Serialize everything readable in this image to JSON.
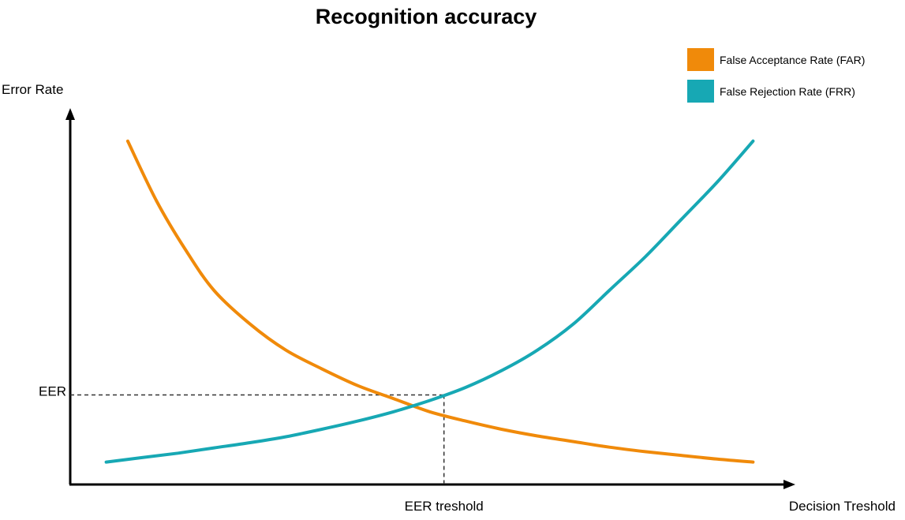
{
  "chart_data": {
    "type": "line",
    "title": "Recognition accuracy",
    "xlabel": "Decision Treshold",
    "ylabel": "Error Rate",
    "xlim": [
      0,
      10
    ],
    "ylim": [
      0,
      10
    ],
    "grid": false,
    "legend_position": "top-right",
    "series": [
      {
        "name": "False Acceptance Rate (FAR)",
        "color": "#F08A0A",
        "x": [
          0.8,
          1.2,
          1.6,
          2.0,
          2.5,
          3.0,
          3.5,
          4.0,
          4.5,
          5.0,
          5.5,
          6.0,
          6.5,
          7.0,
          7.5,
          8.0,
          8.5,
          9.0,
          9.5
        ],
        "y": [
          9.2,
          7.6,
          6.3,
          5.2,
          4.3,
          3.6,
          3.1,
          2.65,
          2.3,
          1.95,
          1.7,
          1.48,
          1.3,
          1.15,
          1.0,
          0.88,
          0.78,
          0.68,
          0.6
        ]
      },
      {
        "name": "False Rejection Rate (FRR)",
        "color": "#17A8B4",
        "x": [
          0.5,
          1.0,
          1.5,
          2.0,
          2.5,
          3.0,
          3.5,
          4.0,
          4.5,
          5.0,
          5.5,
          6.0,
          6.5,
          7.0,
          7.5,
          8.0,
          8.5,
          9.0,
          9.5
        ],
        "y": [
          0.6,
          0.72,
          0.84,
          0.98,
          1.12,
          1.28,
          1.48,
          1.7,
          1.95,
          2.25,
          2.6,
          3.05,
          3.6,
          4.3,
          5.2,
          6.1,
          7.1,
          8.1,
          9.2
        ]
      }
    ],
    "annotations": {
      "eer_label": "EER",
      "eer_threshold_label": "EER treshold",
      "eer_point": {
        "x": 5.2,
        "y": 2.4
      }
    }
  }
}
